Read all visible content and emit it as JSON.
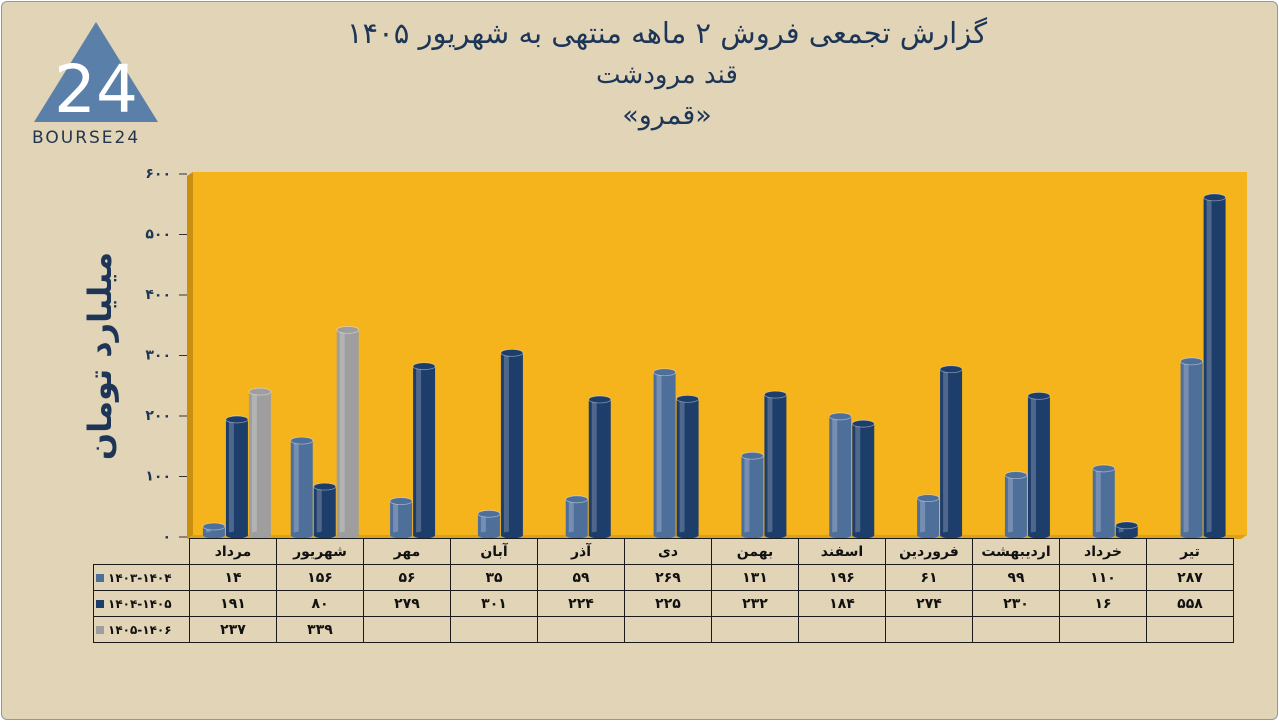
{
  "header": {
    "title_line1": "گزارش تجمعی فروش ۲  ماهه منتهی به شهریور ۱۴۰۵",
    "title_line2": "قند مرودشت",
    "title_line3": "«قمرو»"
  },
  "logo": {
    "text": "BOURSE24",
    "number": "24"
  },
  "colors": {
    "background": "#e2d5b7",
    "plot": "#f6b41c",
    "series1": "#4f6f9b",
    "series2": "#1d3d6b",
    "series3": "#9e9e9e"
  },
  "chart_data": {
    "type": "bar",
    "ylabel": "میلیارد تومان",
    "ylim": [
      0,
      600
    ],
    "yticks": [
      0,
      100,
      200,
      300,
      400,
      500,
      600
    ],
    "ytick_labels": [
      "۰",
      "۱۰۰",
      "۲۰۰",
      "۳۰۰",
      "۴۰۰",
      "۵۰۰",
      "۶۰۰"
    ],
    "categories": [
      "مرداد",
      "شهریور",
      "مهر",
      "آبان",
      "آذر",
      "دی",
      "بهمن",
      "اسفند",
      "فروردین",
      "اردیبهشت",
      "خرداد",
      "تیر"
    ],
    "series": [
      {
        "name": "۱۴۰۳-۱۴۰۴",
        "values": [
          14,
          156,
          56,
          35,
          59,
          269,
          131,
          196,
          61,
          99,
          110,
          287
        ],
        "labels": [
          "۱۴",
          "۱۵۶",
          "۵۶",
          "۳۵",
          "۵۹",
          "۲۶۹",
          "۱۳۱",
          "۱۹۶",
          "۶۱",
          "۹۹",
          "۱۱۰",
          "۲۸۷"
        ]
      },
      {
        "name": "۱۴۰۴-۱۴۰۵",
        "values": [
          191,
          80,
          279,
          301,
          224,
          225,
          232,
          184,
          274,
          230,
          16,
          558
        ],
        "labels": [
          "۱۹۱",
          "۸۰",
          "۲۷۹",
          "۳۰۱",
          "۲۲۴",
          "۲۲۵",
          "۲۳۲",
          "۱۸۴",
          "۲۷۴",
          "۲۳۰",
          "۱۶",
          "۵۵۸"
        ]
      },
      {
        "name": "۱۴۰۵-۱۴۰۶",
        "values": [
          237,
          339,
          null,
          null,
          null,
          null,
          null,
          null,
          null,
          null,
          null,
          null
        ],
        "labels": [
          "۲۳۷",
          "۳۳۹",
          "",
          "",
          "",
          "",
          "",
          "",
          "",
          "",
          "",
          ""
        ]
      }
    ],
    "legend_placement": "table-left",
    "grid": false
  }
}
